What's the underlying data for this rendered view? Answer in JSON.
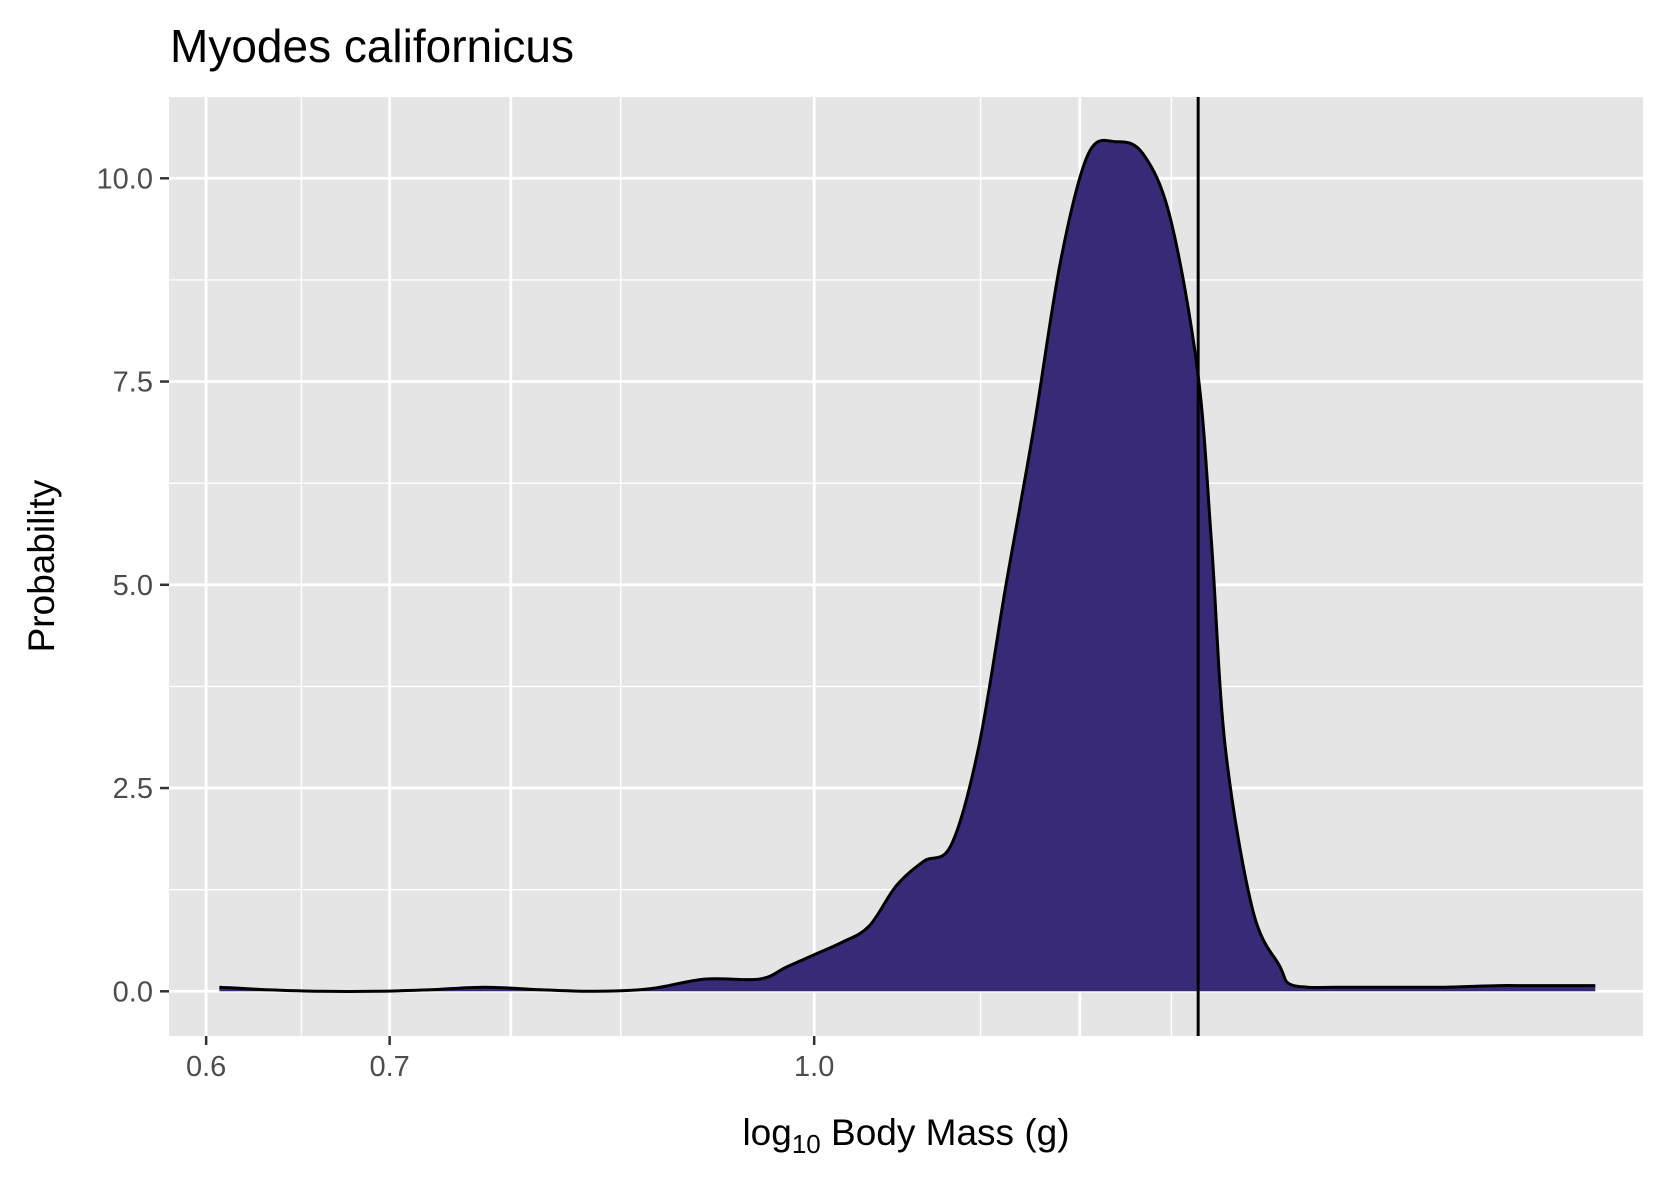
{
  "chart_data": {
    "type": "area",
    "title": "Myodes californicus",
    "xlabel_prefix": "log",
    "xlabel_sub": "10",
    "xlabel_suffix": " Body Mass (g)",
    "ylabel": "Probability",
    "x_scale": "log10",
    "xlim_log10": [
      -0.2354,
      0.3024
    ],
    "ylim": [
      -0.55,
      11.0
    ],
    "x_ticks": [
      0.6,
      0.7,
      1.0
    ],
    "x_tick_labels": [
      "0.6",
      "0.7",
      "1.0"
    ],
    "x_minor_gridlines": [
      0.65,
      0.85,
      1.15,
      1.35
    ],
    "x_major_gridlines": [
      0.6,
      0.7,
      0.775,
      1.0,
      1.25
    ],
    "y_ticks": [
      0.0,
      2.5,
      5.0,
      7.5,
      10.0
    ],
    "y_tick_labels": [
      "0.0",
      "2.5",
      "5.0",
      "7.5",
      "10.0"
    ],
    "grid": true,
    "fill_color": "#382a77",
    "background_color": "#e5e5e5",
    "vline_log10_x": 0.1401,
    "density_series": {
      "log10_x": [
        -0.217,
        -0.2,
        -0.18,
        -0.16,
        -0.14,
        -0.12,
        -0.1,
        -0.08,
        -0.06,
        -0.04,
        -0.02,
        -0.01,
        0.0,
        0.01,
        0.02,
        0.03,
        0.04,
        0.05,
        0.06,
        0.07,
        0.08,
        0.09,
        0.1,
        0.11,
        0.12,
        0.13,
        0.14,
        0.145,
        0.15,
        0.16,
        0.17,
        0.173,
        0.18,
        0.19,
        0.2,
        0.21,
        0.22,
        0.23,
        0.24,
        0.25,
        0.26,
        0.27,
        0.285
      ],
      "density": [
        0.05,
        0.02,
        0.0,
        0.0,
        0.02,
        0.05,
        0.02,
        0.0,
        0.03,
        0.15,
        0.15,
        0.3,
        0.45,
        0.6,
        0.8,
        1.3,
        1.6,
        1.8,
        3.0,
        5.0,
        6.9,
        9.0,
        10.3,
        10.45,
        10.3,
        9.5,
        7.6,
        5.5,
        3.0,
        1.0,
        0.3,
        0.1,
        0.05,
        0.05,
        0.05,
        0.05,
        0.05,
        0.05,
        0.06,
        0.07,
        0.07,
        0.07,
        0.07
      ]
    }
  }
}
